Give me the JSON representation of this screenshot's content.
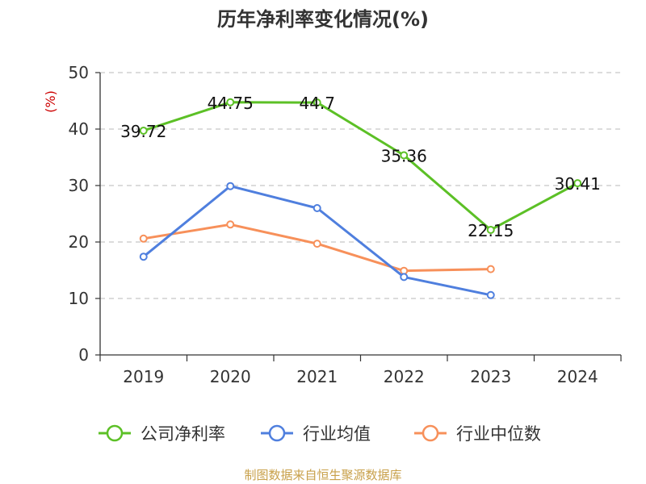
{
  "chart_data": {
    "type": "line",
    "title": "历年净利率变化情况(%)",
    "ylabel": "(%)",
    "xlabel": "",
    "ylim": [
      0,
      50
    ],
    "yticks": [
      0,
      10,
      20,
      30,
      40,
      50
    ],
    "categories": [
      "2019",
      "2020",
      "2021",
      "2022",
      "2023",
      "2024"
    ],
    "grid": true,
    "legend_position": "bottom",
    "series": [
      {
        "name": "公司净利率",
        "color": "#5cc026",
        "values": [
          39.72,
          44.75,
          44.7,
          35.36,
          22.15,
          30.41
        ],
        "labels": [
          "39.72",
          "44.75",
          "44.7",
          "35.36",
          "22.15",
          "30.41"
        ]
      },
      {
        "name": "行业均值",
        "color": "#4f7fde",
        "values": [
          17.4,
          29.9,
          26.0,
          13.8,
          10.6,
          null
        ]
      },
      {
        "name": "行业中位数",
        "color": "#f7905a",
        "values": [
          20.6,
          23.1,
          19.7,
          14.9,
          15.2,
          null
        ]
      }
    ],
    "source": "制图数据来自恒生聚源数据库"
  }
}
